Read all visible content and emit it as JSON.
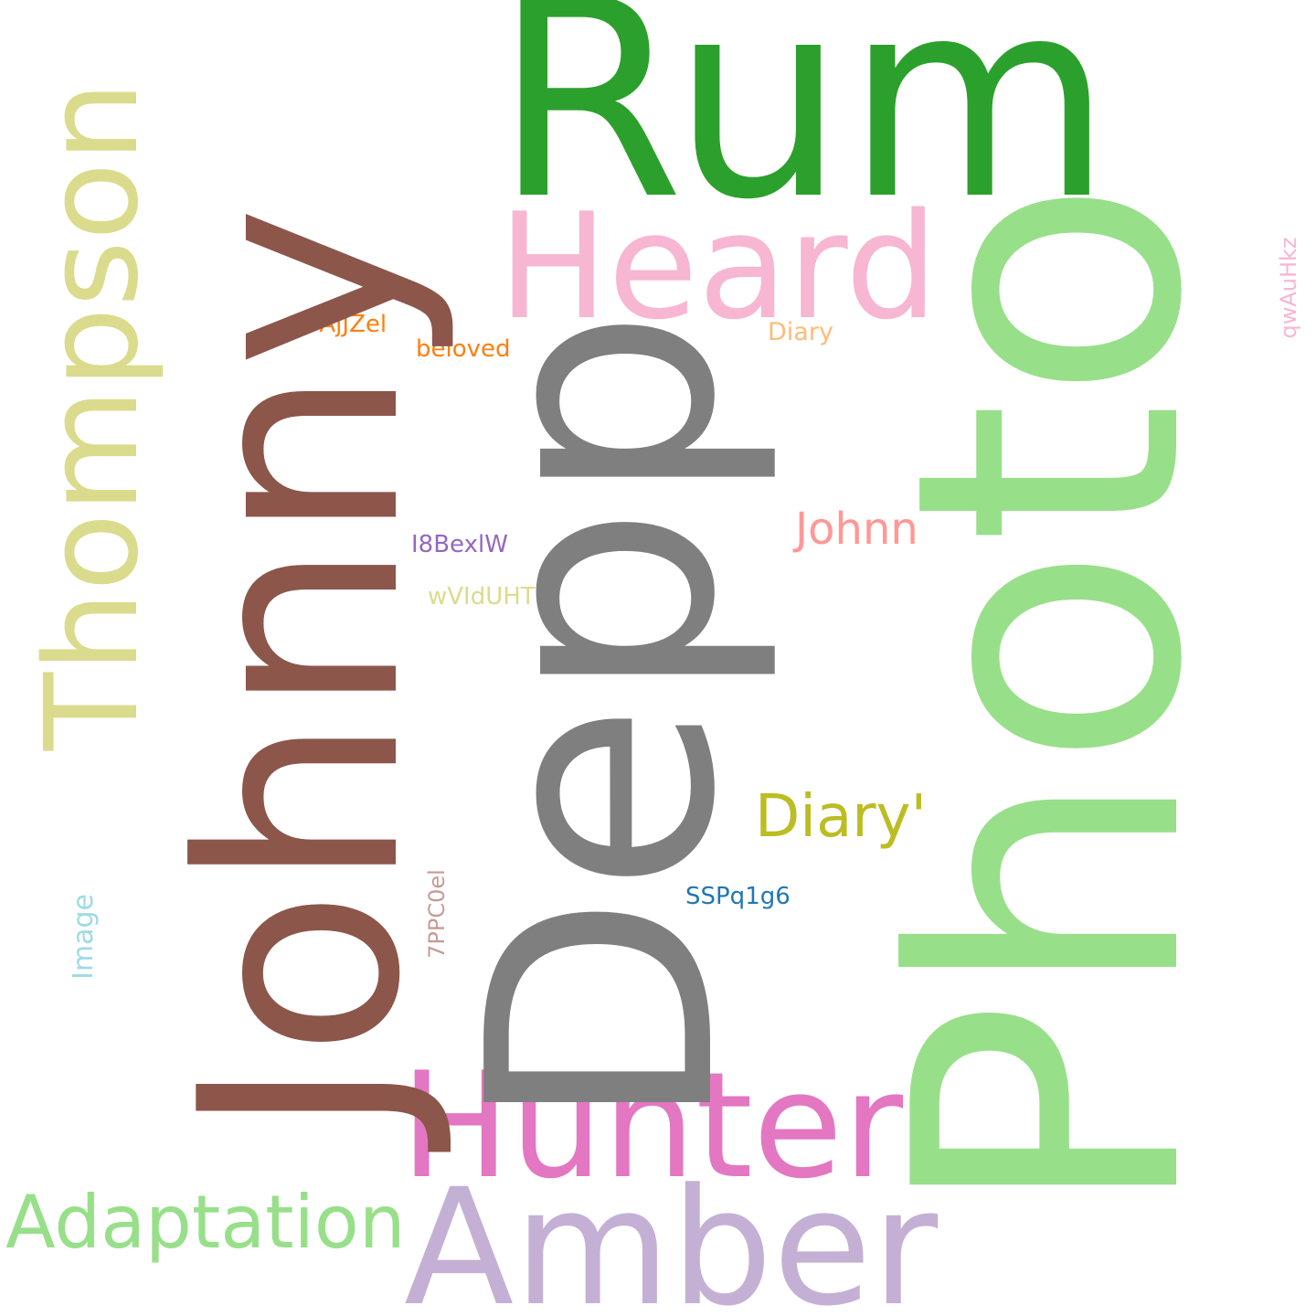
{
  "words": {
    "rum": {
      "text": "Rum",
      "color": "#2ca02c",
      "orientation": "horizontal"
    },
    "johnny": {
      "text": "Johnny",
      "color": "#8c564b",
      "orientation": "vertical"
    },
    "depp": {
      "text": "Depp",
      "color": "#7f7f7f",
      "orientation": "vertical"
    },
    "photo": {
      "text": "Photo",
      "color": "#98df8a",
      "orientation": "vertical"
    },
    "thompson": {
      "text": "Thompson",
      "color": "#dbdb8d",
      "orientation": "vertical"
    },
    "heard": {
      "text": "Heard",
      "color": "#f7b6d2",
      "orientation": "horizontal"
    },
    "hunter": {
      "text": "Hunter",
      "color": "#e377c2",
      "orientation": "horizontal"
    },
    "amber": {
      "text": "Amber",
      "color": "#c5b0d5",
      "orientation": "horizontal"
    },
    "adaptation": {
      "text": "Adaptation",
      "color": "#98df8a",
      "orientation": "horizontal"
    },
    "johnn": {
      "text": "Johnn",
      "color": "#ff9896",
      "orientation": "horizontal"
    },
    "diary_quote": {
      "text": "Diary'",
      "color": "#bcbd22",
      "orientation": "horizontal"
    },
    "vajjzel": {
      "text": "vAjJZel",
      "color": "#ff7f0e",
      "orientation": "horizontal"
    },
    "beloved": {
      "text": "beloved",
      "color": "#ff7f0e",
      "orientation": "horizontal"
    },
    "diary": {
      "text": "Diary",
      "color": "#ffbb78",
      "orientation": "horizontal"
    },
    "i8bexlw": {
      "text": "I8BexlW",
      "color": "#9467bd",
      "orientation": "horizontal"
    },
    "wvidunt": {
      "text": "wVIdUHT",
      "color": "#dbdb8d",
      "orientation": "horizontal"
    },
    "sspq1g6": {
      "text": "SSPq1g6",
      "color": "#1f77b4",
      "orientation": "horizontal"
    },
    "image": {
      "text": "Image",
      "color": "#9edae5",
      "orientation": "vertical"
    },
    "7ppc0el": {
      "text": "7PPC0el",
      "color": "#c49c94",
      "orientation": "vertical"
    },
    "qwauhkz": {
      "text": "qwAuHkz",
      "color": "#f7b6d2",
      "orientation": "vertical"
    }
  }
}
